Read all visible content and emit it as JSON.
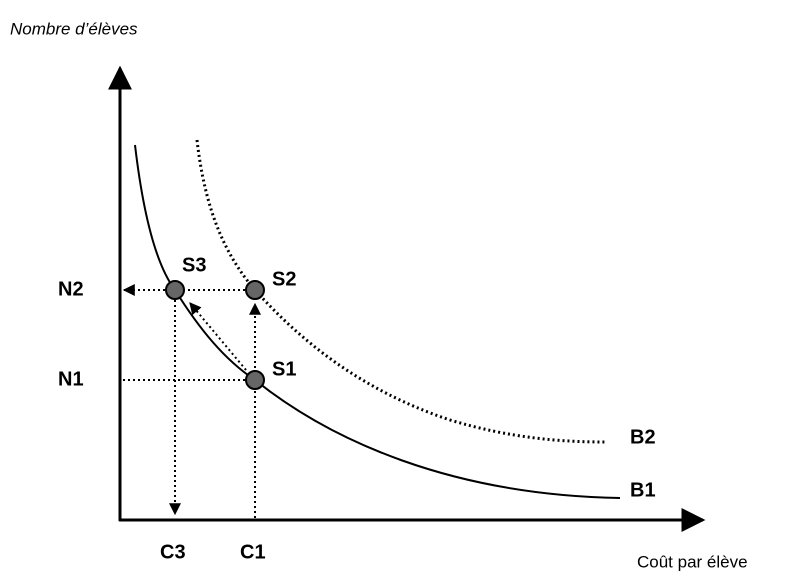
{
  "axes": {
    "y_label": "Nombre d’élèves",
    "x_label": "Coût par élève"
  },
  "points": [
    {
      "label": "S1"
    },
    {
      "label": "S2"
    },
    {
      "label": "S3"
    }
  ],
  "y_levels": [
    "N1",
    "N2"
  ],
  "x_levels": [
    "C1",
    "C3"
  ],
  "curves": [
    "B1",
    "B2"
  ]
}
